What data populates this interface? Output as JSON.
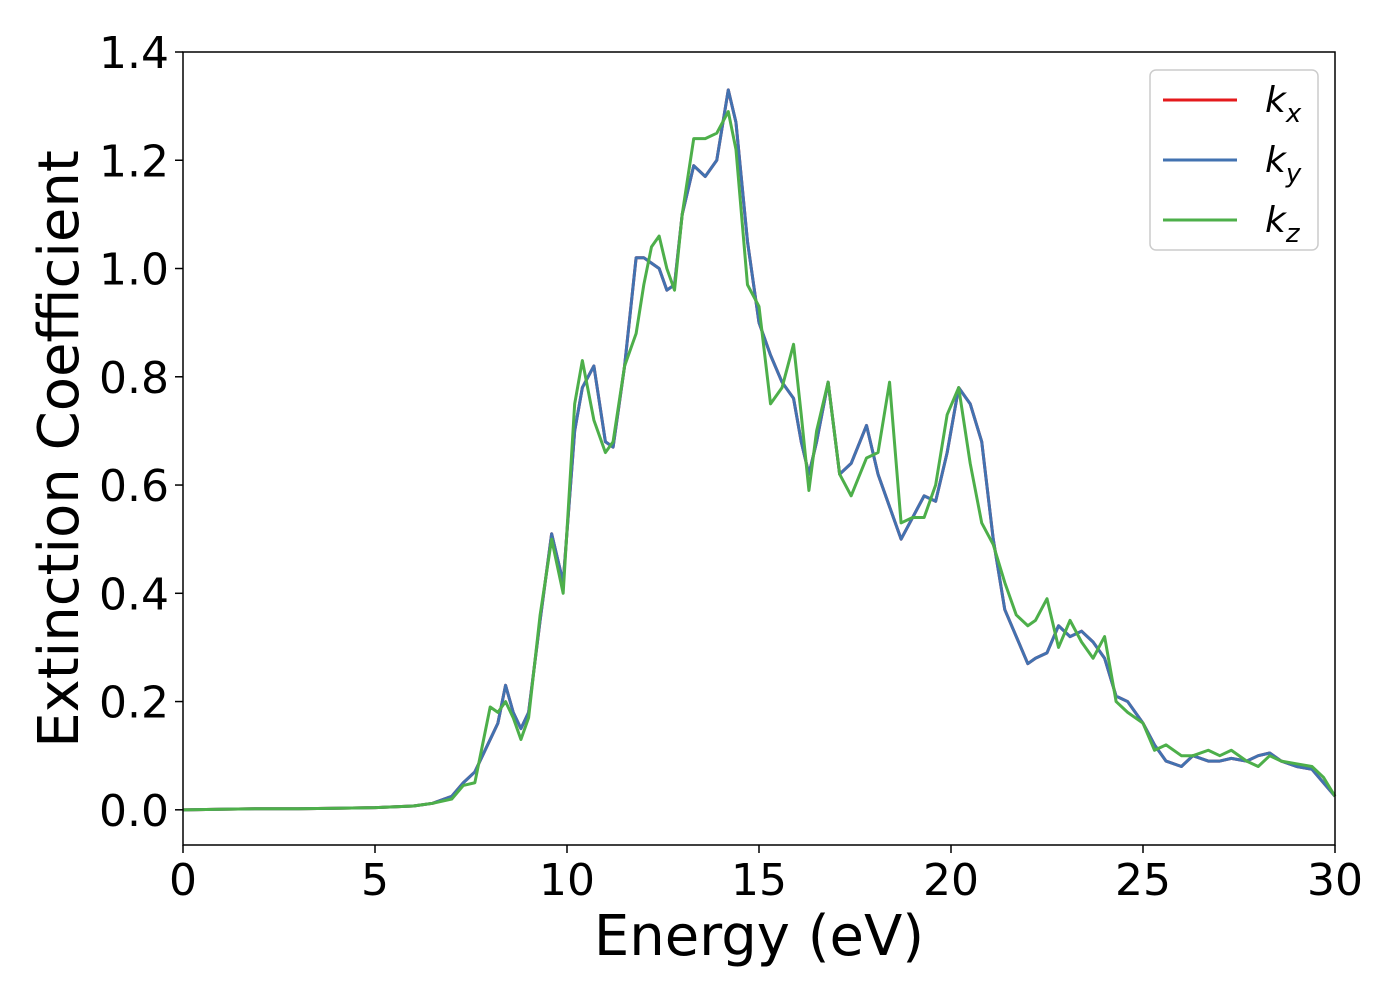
{
  "chart_data": {
    "type": "line",
    "xlabel": "Energy (eV)",
    "ylabel": "Extinction Coefficient",
    "x": [
      0,
      1,
      2,
      3,
      4,
      5,
      6,
      6.5,
      7,
      7.3,
      7.6,
      8,
      8.2,
      8.4,
      8.6,
      8.8,
      9,
      9.3,
      9.6,
      9.9,
      10.2,
      10.4,
      10.7,
      11,
      11.2,
      11.5,
      11.8,
      12,
      12.2,
      12.4,
      12.6,
      12.8,
      13,
      13.3,
      13.6,
      13.9,
      14.2,
      14.4,
      14.7,
      15,
      15.3,
      15.6,
      15.9,
      16.1,
      16.3,
      16.5,
      16.8,
      17.1,
      17.4,
      17.8,
      18.1,
      18.4,
      18.7,
      19,
      19.3,
      19.6,
      19.9,
      20.2,
      20.5,
      20.8,
      21.1,
      21.4,
      21.7,
      22,
      22.2,
      22.5,
      22.8,
      23.1,
      23.4,
      23.7,
      24,
      24.3,
      24.6,
      25,
      25.3,
      25.6,
      26,
      26.3,
      26.7,
      27,
      27.3,
      27.7,
      28,
      28.3,
      28.6,
      29,
      29.4,
      29.7,
      30
    ],
    "series": [
      {
        "name": "kx",
        "color": "#e41a1c",
        "values": [
          0,
          0.001,
          0.002,
          0.002,
          0.003,
          0.004,
          0.007,
          0.012,
          0.025,
          0.05,
          0.07,
          0.13,
          0.16,
          0.23,
          0.18,
          0.15,
          0.18,
          0.35,
          0.51,
          0.42,
          0.7,
          0.78,
          0.82,
          0.68,
          0.67,
          0.82,
          1.02,
          1.02,
          1.01,
          1.0,
          0.96,
          0.97,
          1.1,
          1.19,
          1.17,
          1.2,
          1.33,
          1.27,
          1.05,
          0.9,
          0.84,
          0.79,
          0.76,
          0.68,
          0.62,
          0.68,
          0.79,
          0.62,
          0.64,
          0.71,
          0.62,
          0.56,
          0.5,
          0.54,
          0.58,
          0.57,
          0.66,
          0.78,
          0.75,
          0.68,
          0.5,
          0.37,
          0.32,
          0.27,
          0.28,
          0.29,
          0.34,
          0.32,
          0.33,
          0.31,
          0.28,
          0.21,
          0.2,
          0.16,
          0.12,
          0.09,
          0.08,
          0.1,
          0.09,
          0.09,
          0.095,
          0.09,
          0.1,
          0.105,
          0.09,
          0.08,
          0.075,
          0.05,
          0.025
        ]
      },
      {
        "name": "ky",
        "color": "#4272b0",
        "values": [
          0,
          0.001,
          0.002,
          0.002,
          0.003,
          0.004,
          0.007,
          0.012,
          0.025,
          0.05,
          0.07,
          0.13,
          0.16,
          0.23,
          0.18,
          0.15,
          0.18,
          0.35,
          0.51,
          0.42,
          0.7,
          0.78,
          0.82,
          0.68,
          0.67,
          0.82,
          1.02,
          1.02,
          1.01,
          1.0,
          0.96,
          0.97,
          1.1,
          1.19,
          1.17,
          1.2,
          1.33,
          1.27,
          1.05,
          0.9,
          0.84,
          0.79,
          0.76,
          0.68,
          0.62,
          0.68,
          0.79,
          0.62,
          0.64,
          0.71,
          0.62,
          0.56,
          0.5,
          0.54,
          0.58,
          0.57,
          0.66,
          0.78,
          0.75,
          0.68,
          0.5,
          0.37,
          0.32,
          0.27,
          0.28,
          0.29,
          0.34,
          0.32,
          0.33,
          0.31,
          0.28,
          0.21,
          0.2,
          0.16,
          0.12,
          0.09,
          0.08,
          0.1,
          0.09,
          0.09,
          0.095,
          0.09,
          0.1,
          0.105,
          0.09,
          0.08,
          0.075,
          0.05,
          0.025
        ]
      },
      {
        "name": "kz",
        "color": "#4daf4a",
        "values": [
          0,
          0.001,
          0.002,
          0.002,
          0.003,
          0.004,
          0.007,
          0.012,
          0.02,
          0.045,
          0.05,
          0.19,
          0.18,
          0.2,
          0.17,
          0.13,
          0.17,
          0.36,
          0.5,
          0.4,
          0.75,
          0.83,
          0.72,
          0.66,
          0.68,
          0.82,
          0.88,
          0.97,
          1.04,
          1.06,
          1.0,
          0.96,
          1.1,
          1.24,
          1.24,
          1.25,
          1.29,
          1.22,
          0.97,
          0.93,
          0.75,
          0.78,
          0.86,
          0.73,
          0.59,
          0.7,
          0.79,
          0.62,
          0.58,
          0.65,
          0.66,
          0.79,
          0.53,
          0.54,
          0.54,
          0.6,
          0.73,
          0.78,
          0.64,
          0.53,
          0.49,
          0.42,
          0.36,
          0.34,
          0.35,
          0.39,
          0.3,
          0.35,
          0.31,
          0.28,
          0.32,
          0.2,
          0.18,
          0.16,
          0.11,
          0.12,
          0.1,
          0.1,
          0.11,
          0.1,
          0.11,
          0.09,
          0.08,
          0.1,
          0.09,
          0.085,
          0.08,
          0.06,
          0.025
        ]
      }
    ],
    "xlim": [
      0,
      30
    ],
    "xticks": [
      0,
      5,
      10,
      15,
      20,
      25,
      30
    ],
    "ylim": [
      -0.065,
      1.4
    ],
    "yticks": [
      {
        "value": 0,
        "label": "0.0"
      },
      0.2,
      0.4,
      0.6,
      0.8,
      {
        "value": 1,
        "label": "1.0"
      },
      1.2,
      1.4
    ],
    "grid": false,
    "legend": "upper right"
  }
}
